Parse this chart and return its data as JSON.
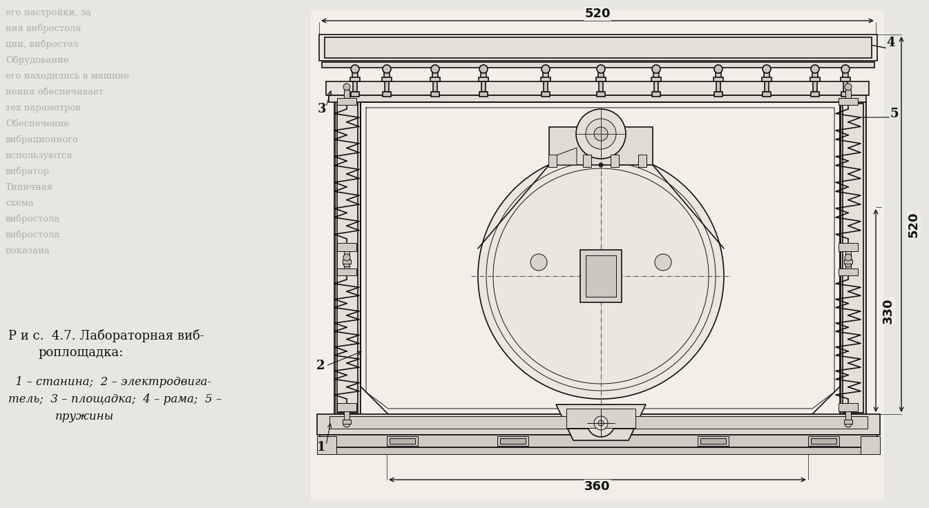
{
  "bg_left": "#e8e6e0",
  "bg_right": "#e8e5de",
  "drawing_bg": "#f0ede6",
  "lc": "#111111",
  "dim_color": "#111111",
  "title_line1": "Р и с.  4.7. Лабораторная виб-",
  "title_line2": "роплощадка:",
  "cap1": "  1 – станина;  2 – электродвига-",
  "cap2": "тель;  3 – площадка;  4 – рама;  5 –",
  "cap3": "пружины",
  "d520": "520",
  "d520v": "520",
  "d330": "330",
  "d360": "360",
  "bg_texts": [
    [
      8,
      22,
      "его настройки, за"
    ],
    [
      8,
      45,
      "ния вибростола"
    ],
    [
      8,
      68,
      "ции, вибростол"
    ],
    [
      8,
      91,
      "Обрудование"
    ],
    [
      8,
      114,
      "его находились в машине"
    ],
    [
      8,
      137,
      "нения обеспечивает"
    ],
    [
      8,
      160,
      "тех параметров"
    ],
    [
      8,
      183,
      "Обеспечение"
    ],
    [
      8,
      206,
      "вибрационного"
    ],
    [
      8,
      229,
      "используются"
    ],
    [
      8,
      252,
      "вибратор"
    ],
    [
      8,
      275,
      "Типичная"
    ],
    [
      8,
      298,
      "схема"
    ],
    [
      8,
      321,
      "вибростола"
    ],
    [
      8,
      344,
      "вибростола"
    ],
    [
      8,
      367,
      "показана"
    ]
  ]
}
